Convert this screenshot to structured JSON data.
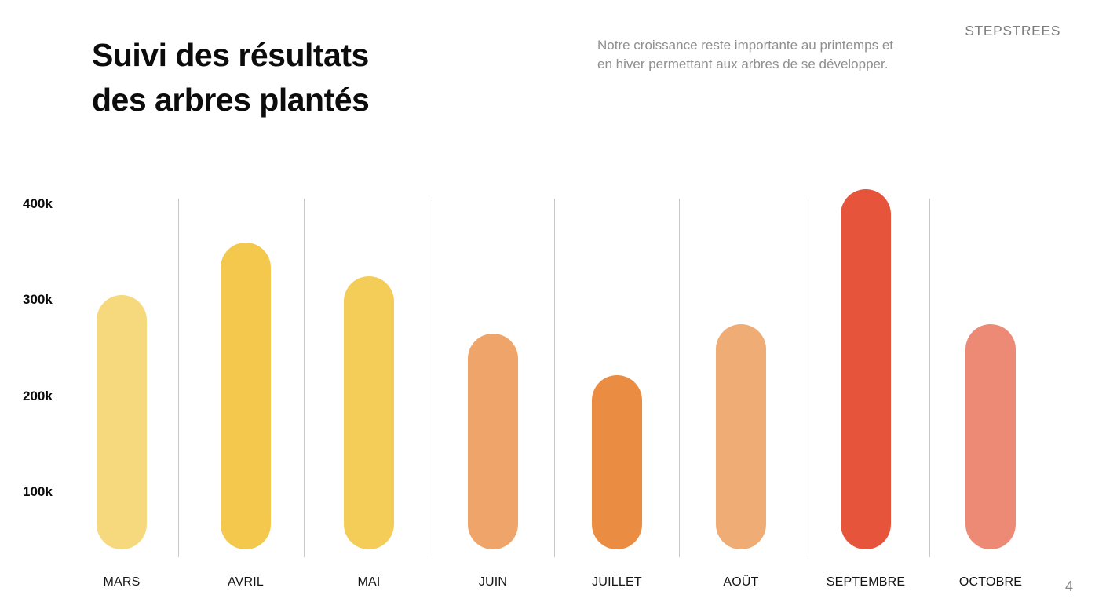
{
  "slide": {
    "brand": "STEPSTREES",
    "title_lines": [
      "Suivi des résultats",
      "des arbres plantés"
    ],
    "subtitle_lines": [
      "Notre croissance reste importante au printemps et",
      "en hiver permettant aux arbres de se développer."
    ],
    "page_number": "4"
  },
  "chart_data": {
    "type": "bar",
    "title": "Suivi des résultats des arbres plantés",
    "subtitle": "Notre croissance reste importante au printemps et en hiver permettant aux arbres de se développer.",
    "categories": [
      "MARS",
      "AVRIL",
      "MAI",
      "JUIN",
      "JUILLET",
      "AOÛT",
      "SEPTEMBRE",
      "OCTOBRE"
    ],
    "values": [
      305000,
      360000,
      325000,
      265000,
      222000,
      275000,
      415000,
      275000
    ],
    "bar_colors": [
      "#F5D97C",
      "#F3C84D",
      "#F4CC58",
      "#EFA469",
      "#EA8C41",
      "#F0AC75",
      "#E6553B",
      "#ED8A75"
    ],
    "y_ticks": [
      {
        "label": "400k",
        "value": 400000
      },
      {
        "label": "300k",
        "value": 300000
      },
      {
        "label": "200k",
        "value": 200000
      },
      {
        "label": "100k",
        "value": 100000
      }
    ],
    "xlabel": "",
    "ylabel": "",
    "ylim": [
      0,
      430000
    ],
    "grid": "vertical-separators-only",
    "legend": "none",
    "bar_shape": "rounded-pill"
  }
}
